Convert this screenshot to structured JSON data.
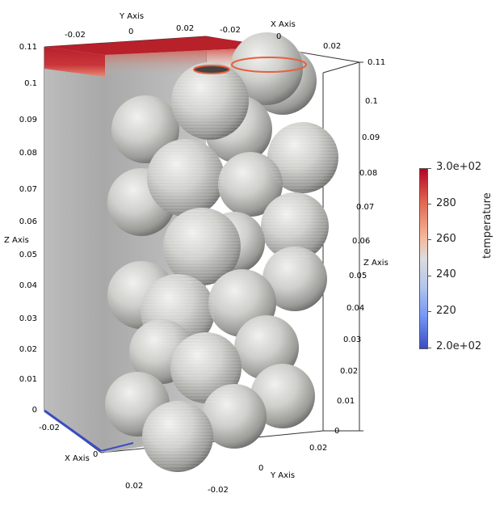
{
  "axes": {
    "y_axis_top": {
      "title": "Y Axis",
      "ticks": [
        "-0.02",
        "0",
        "0.02"
      ]
    },
    "x_axis_top": {
      "title": "X Axis",
      "ticks": [
        "-0.02",
        "0",
        "0.02"
      ]
    },
    "z_axis_left": {
      "title": "Z Axis",
      "ticks": [
        "0.11",
        "0.1",
        "0.09",
        "0.08",
        "0.07",
        "0.06",
        "0.05",
        "0.04",
        "0.03",
        "0.02",
        "0.01",
        "0"
      ]
    },
    "z_axis_right": {
      "title": "Z Axis",
      "ticks": [
        "0.11",
        "0.1",
        "0.09",
        "0.08",
        "0.07",
        "0.06",
        "0.05",
        "0.04",
        "0.03",
        "0.02",
        "0.01",
        "0"
      ]
    },
    "x_axis_bottom": {
      "title": "X Axis",
      "ticks": [
        "-0.02",
        "0",
        "0.02"
      ]
    },
    "y_axis_bottom": {
      "title": "Y Axis",
      "ticks": [
        "-0.02",
        "0",
        "0.02"
      ]
    }
  },
  "colorbar": {
    "title": "temperature",
    "labels": [
      "3.0e+02",
      "280",
      "260",
      "240",
      "220",
      "2.0e+02"
    ],
    "range": [
      200,
      300
    ],
    "colors": {
      "high": "#b40426",
      "mid": "#dddcdc",
      "low": "#3b4cc0"
    }
  },
  "scene": {
    "description_colors": {
      "sphere": "#c8c8c6",
      "box_wall": "#b8b8b8",
      "hot_cap": "#b8202a"
    }
  }
}
